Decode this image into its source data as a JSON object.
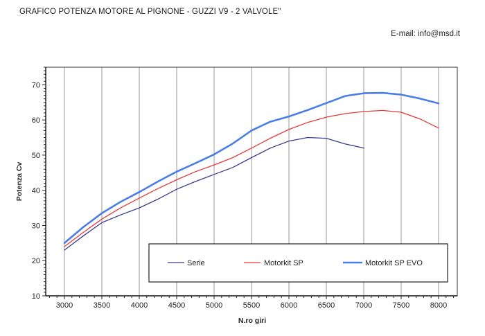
{
  "header": {
    "title": "GRAFICO POTENZA MOTORE AL PIGNONE - GUZZI V9 - 2 VALVOLE\"",
    "email": "E-mail: info@msd.it"
  },
  "chart_data": {
    "type": "line",
    "title": "GRAFICO POTENZA MOTORE AL PIGNONE - GUZZI V9 - 2 VALVOLE\"",
    "xlabel": "N.ro giri",
    "ylabel": "Potenza Cv",
    "xlim": [
      2750,
      8250
    ],
    "ylim": [
      10,
      75
    ],
    "x_ticks": [
      3000,
      3500,
      4000,
      4500,
      5000,
      5500,
      6000,
      6500,
      7000,
      7500,
      8000
    ],
    "y_ticks": [
      10,
      20,
      30,
      40,
      50,
      60,
      70
    ],
    "grid": "vertical",
    "legend_position": "bottom-right",
    "series": [
      {
        "name": "Serie",
        "color": "#3a3a8c",
        "x": [
          3000,
          3250,
          3500,
          3750,
          4000,
          4250,
          4500,
          4750,
          5000,
          5250,
          5500,
          5750,
          6000,
          6250,
          6500,
          6750,
          7000
        ],
        "y": [
          23,
          27,
          30.8,
          33,
          35,
          37.5,
          40.3,
          42.5,
          44.5,
          46.5,
          49.3,
          52,
          54,
          55,
          54.8,
          53.2,
          52
        ]
      },
      {
        "name": "Motorkit SP",
        "color": "#e53935",
        "x": [
          3000,
          3250,
          3500,
          3750,
          4000,
          4250,
          4500,
          4750,
          5000,
          5250,
          5500,
          5750,
          6000,
          6250,
          6500,
          6750,
          7000,
          7250,
          7500,
          7750,
          8000
        ],
        "y": [
          24,
          28,
          31.8,
          35,
          37.8,
          40.5,
          43,
          45.3,
          47.2,
          49.3,
          52,
          54.8,
          57.3,
          59.3,
          60.8,
          61.8,
          62.4,
          62.7,
          62.2,
          60.3,
          57.7
        ]
      },
      {
        "name": "Motorkit SP EVO",
        "color": "#4a7ee6",
        "x": [
          3000,
          3250,
          3500,
          3750,
          4000,
          4250,
          4500,
          4750,
          5000,
          5250,
          5500,
          5750,
          6000,
          6250,
          6500,
          6750,
          7000,
          7250,
          7500,
          7750,
          8000
        ],
        "y": [
          25,
          29.5,
          33.5,
          36.7,
          39.5,
          42.5,
          45.3,
          47.7,
          50.2,
          53.3,
          57,
          59.5,
          61,
          62.8,
          64.8,
          66.8,
          67.6,
          67.7,
          67.2,
          66.1,
          64.7
        ]
      }
    ]
  }
}
